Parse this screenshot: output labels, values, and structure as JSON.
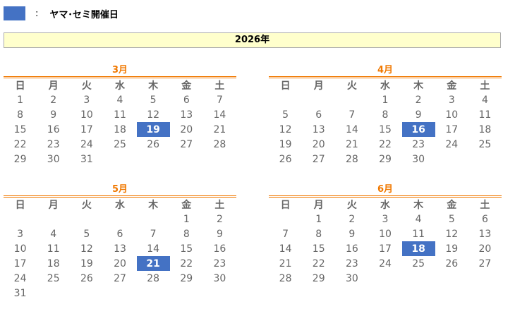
{
  "legend": {
    "label": "ヤマ･セミ開催日",
    "separator": ":",
    "color": "#4472c4"
  },
  "year": "2026年",
  "weekdays": [
    "日",
    "月",
    "火",
    "水",
    "木",
    "金",
    "土"
  ],
  "months": [
    {
      "label": "3月",
      "highlight": 19,
      "weeks": [
        [
          1,
          2,
          3,
          4,
          5,
          6,
          7
        ],
        [
          8,
          9,
          10,
          11,
          12,
          13,
          14
        ],
        [
          15,
          16,
          17,
          18,
          19,
          20,
          21
        ],
        [
          22,
          23,
          24,
          25,
          26,
          27,
          28
        ],
        [
          29,
          30,
          31,
          null,
          null,
          null,
          null
        ]
      ]
    },
    {
      "label": "4月",
      "highlight": 16,
      "weeks": [
        [
          null,
          null,
          null,
          1,
          2,
          3,
          4
        ],
        [
          5,
          6,
          7,
          8,
          9,
          10,
          11
        ],
        [
          12,
          13,
          14,
          15,
          16,
          17,
          18
        ],
        [
          19,
          20,
          21,
          22,
          23,
          24,
          25
        ],
        [
          26,
          27,
          28,
          29,
          30,
          null,
          null
        ]
      ]
    },
    {
      "label": "5月",
      "highlight": 21,
      "weeks": [
        [
          null,
          null,
          null,
          null,
          null,
          1,
          2
        ],
        [
          3,
          4,
          5,
          6,
          7,
          8,
          9
        ],
        [
          10,
          11,
          12,
          13,
          14,
          15,
          16
        ],
        [
          17,
          18,
          19,
          20,
          21,
          22,
          23
        ],
        [
          24,
          25,
          26,
          27,
          28,
          29,
          30
        ],
        [
          31,
          null,
          null,
          null,
          null,
          null,
          null
        ]
      ]
    },
    {
      "label": "6月",
      "highlight": 18,
      "weeks": [
        [
          null,
          1,
          2,
          3,
          4,
          5,
          6
        ],
        [
          7,
          8,
          9,
          10,
          11,
          12,
          13
        ],
        [
          14,
          15,
          16,
          17,
          18,
          19,
          20
        ],
        [
          21,
          22,
          23,
          24,
          25,
          26,
          27
        ],
        [
          28,
          29,
          30,
          null,
          null,
          null,
          null
        ]
      ]
    }
  ]
}
